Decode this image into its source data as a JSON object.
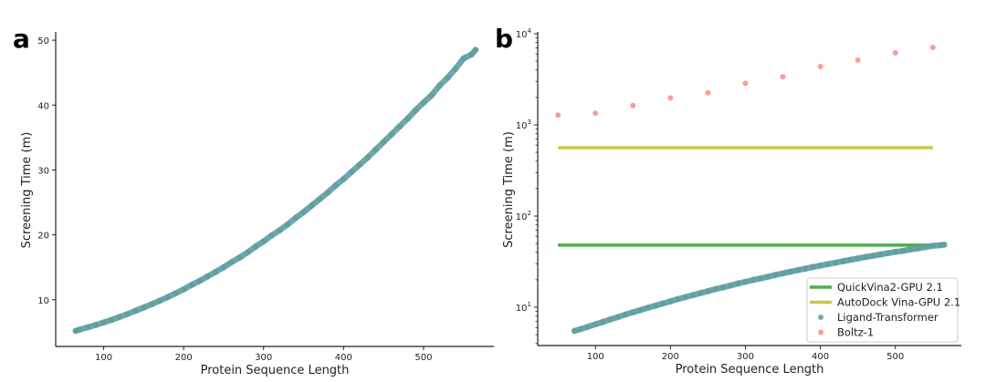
{
  "chart_data": [
    {
      "panel_label": "a",
      "type": "scatter",
      "xlabel": "Protein Sequence Length",
      "ylabel": "Screening Time (m)",
      "xlim": [
        40,
        588
      ],
      "ylim": [
        2.8,
        51
      ],
      "xticks": [
        100,
        200,
        300,
        400,
        500
      ],
      "yticks": [
        10,
        20,
        30,
        40,
        50
      ],
      "yscale": "linear",
      "grid": false,
      "color": "#5f9ea0",
      "x": [
        65,
        70,
        80,
        90,
        100,
        110,
        120,
        130,
        140,
        150,
        160,
        170,
        180,
        190,
        200,
        210,
        220,
        230,
        240,
        250,
        260,
        270,
        280,
        290,
        300,
        310,
        320,
        330,
        340,
        350,
        360,
        370,
        380,
        390,
        400,
        410,
        420,
        430,
        440,
        450,
        460,
        470,
        480,
        490,
        500,
        510,
        520,
        530,
        540,
        550,
        560,
        565
      ],
      "y": [
        5.2,
        5.4,
        5.75,
        6.1,
        6.5,
        6.9,
        7.35,
        7.8,
        8.3,
        8.8,
        9.3,
        9.85,
        10.4,
        11.0,
        11.6,
        12.3,
        12.9,
        13.6,
        14.3,
        15.0,
        15.8,
        16.5,
        17.3,
        18.2,
        19.0,
        19.9,
        20.7,
        21.6,
        22.6,
        23.5,
        24.5,
        25.5,
        26.5,
        27.6,
        28.6,
        29.7,
        30.8,
        31.9,
        33.1,
        34.3,
        35.5,
        36.7,
        37.9,
        39.2,
        40.4,
        41.5,
        43.0,
        44.2,
        45.6,
        47.2,
        47.8,
        48.5
      ]
    },
    {
      "panel_label": "b",
      "type": "scatter",
      "xlabel": "Protein Sequence Length",
      "ylabel": "Screening Time (m)",
      "xlim": [
        23,
        588
      ],
      "ylim": [
        3.8,
        10000
      ],
      "xticks": [
        100,
        200,
        300,
        400,
        500
      ],
      "yticks": [
        10,
        100,
        1000,
        10000
      ],
      "ytick_labels": [
        [
          "10",
          "1"
        ],
        [
          "10",
          "2"
        ],
        [
          "10",
          "3"
        ],
        [
          "10",
          "4"
        ]
      ],
      "yscale": "log",
      "grid": false,
      "legend_position": "lower-right",
      "series": [
        {
          "name": "QuickVina2-GPU 2.1",
          "type": "hline",
          "color": "#4caf4c",
          "x": [
            50,
            550
          ],
          "y": [
            48,
            48
          ]
        },
        {
          "name": "AutoDock Vina-GPU 2.1",
          "type": "hline",
          "color": "#c8c84c",
          "x": [
            50,
            550
          ],
          "y": [
            562,
            562
          ]
        },
        {
          "name": "Ligand-Transformer",
          "type": "scatter",
          "color": "#5f9ea0",
          "x": [
            72,
            80,
            90,
            100,
            110,
            120,
            130,
            140,
            150,
            160,
            170,
            180,
            190,
            200,
            210,
            220,
            230,
            240,
            250,
            260,
            270,
            280,
            290,
            300,
            310,
            320,
            330,
            340,
            350,
            360,
            370,
            380,
            390,
            400,
            410,
            420,
            430,
            440,
            450,
            460,
            470,
            480,
            490,
            500,
            510,
            520,
            530,
            540,
            550,
            560,
            565
          ],
          "y": [
            5.5,
            5.75,
            6.1,
            6.5,
            6.9,
            7.35,
            7.8,
            8.3,
            8.8,
            9.3,
            9.85,
            10.4,
            11.0,
            11.6,
            12.3,
            12.9,
            13.6,
            14.3,
            15.0,
            15.8,
            16.5,
            17.3,
            18.2,
            19.0,
            19.9,
            20.7,
            21.6,
            22.6,
            23.5,
            24.5,
            25.5,
            26.5,
            27.6,
            28.6,
            29.7,
            30.8,
            31.9,
            33.1,
            34.3,
            35.5,
            36.7,
            37.9,
            39.2,
            40.4,
            41.5,
            43.0,
            44.2,
            45.6,
            47.2,
            47.8,
            48.5
          ]
        },
        {
          "name": "Boltz-1",
          "type": "scatter",
          "color": "#f98b8b",
          "x": [
            50,
            100,
            150,
            200,
            250,
            300,
            350,
            400,
            450,
            500,
            550
          ],
          "y": [
            1280,
            1340,
            1630,
            1980,
            2250,
            2860,
            3370,
            4370,
            5130,
            6170,
            7080
          ]
        }
      ]
    }
  ]
}
